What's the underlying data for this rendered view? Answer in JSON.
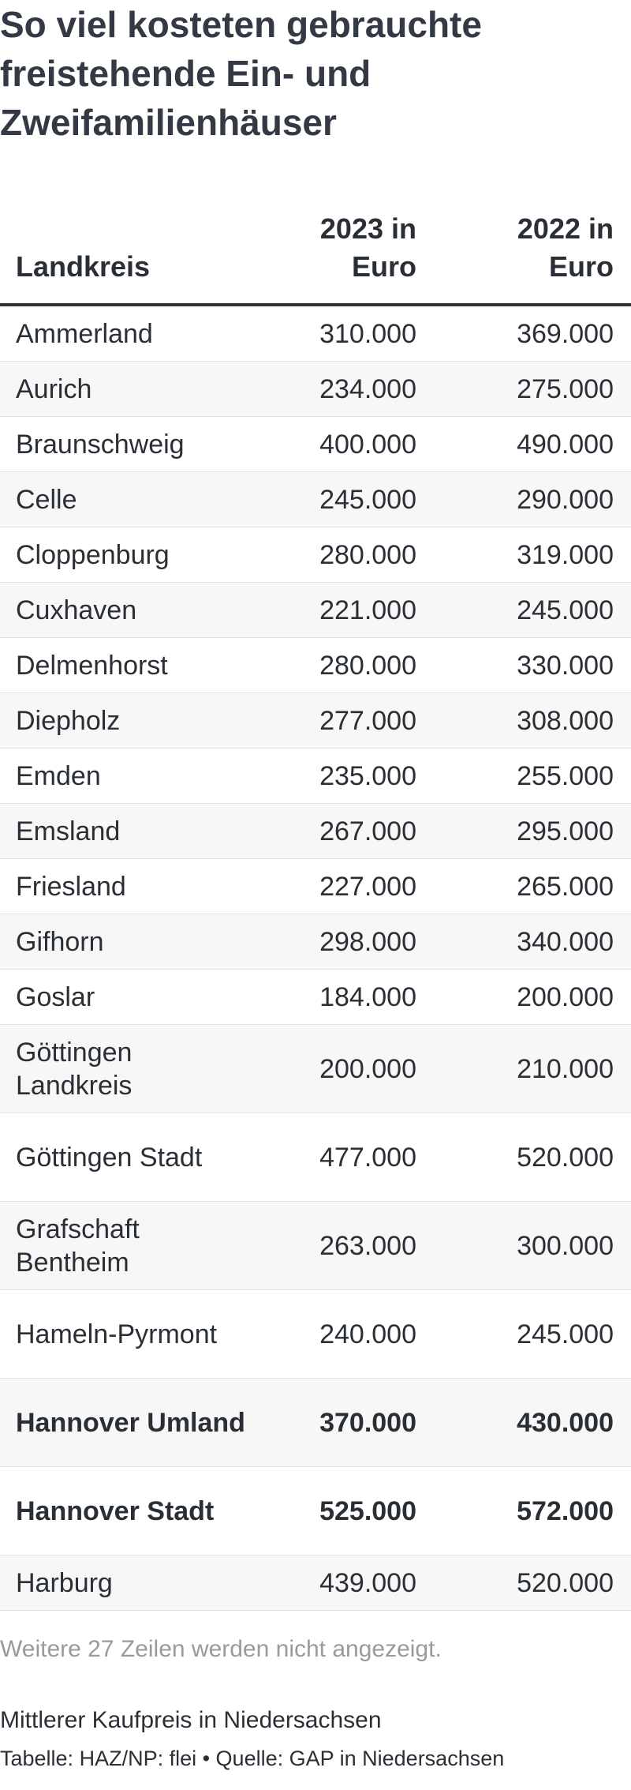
{
  "title": "So viel kosteten gebrauchte freistehende Ein- und Zweifamilienhäuser",
  "table": {
    "headers": [
      "Landkreis",
      "2023 in Euro",
      "2022 in Euro"
    ],
    "rows": [
      {
        "name": "Ammerland",
        "v2023": "310.000",
        "v2022": "369.000"
      },
      {
        "name": "Aurich",
        "v2023": "234.000",
        "v2022": "275.000"
      },
      {
        "name": "Braunschweig",
        "v2023": "400.000",
        "v2022": "490.000"
      },
      {
        "name": "Celle",
        "v2023": "245.000",
        "v2022": "290.000"
      },
      {
        "name": "Cloppenburg",
        "v2023": "280.000",
        "v2022": "319.000"
      },
      {
        "name": "Cuxhaven",
        "v2023": "221.000",
        "v2022": "245.000"
      },
      {
        "name": "Delmenhorst",
        "v2023": "280.000",
        "v2022": "330.000"
      },
      {
        "name": "Diepholz",
        "v2023": "277.000",
        "v2022": "308.000"
      },
      {
        "name": "Emden",
        "v2023": "235.000",
        "v2022": "255.000"
      },
      {
        "name": "Emsland",
        "v2023": "267.000",
        "v2022": "295.000"
      },
      {
        "name": "Friesland",
        "v2023": "227.000",
        "v2022": "265.000"
      },
      {
        "name": "Gifhorn",
        "v2023": "298.000",
        "v2022": "340.000"
      },
      {
        "name": "Goslar",
        "v2023": "184.000",
        "v2022": "200.000"
      },
      {
        "name": "Göttingen Landkreis",
        "v2023": "200.000",
        "v2022": "210.000"
      },
      {
        "name": "Göttingen Stadt",
        "v2023": "477.000",
        "v2022": "520.000"
      },
      {
        "name": "Grafschaft Bentheim",
        "v2023": "263.000",
        "v2022": "300.000"
      },
      {
        "name": "Hameln-Pyrmont",
        "v2023": "240.000",
        "v2022": "245.000"
      },
      {
        "name": "Hannover Umland",
        "v2023": "370.000",
        "v2022": "430.000"
      },
      {
        "name": "Hannover Stadt",
        "v2023": "525.000",
        "v2022": "572.000"
      },
      {
        "name": "Harburg",
        "v2023": "439.000",
        "v2022": "520.000"
      }
    ]
  },
  "more_rows_text": "Weitere 27 Zeilen werden nicht angezeigt.",
  "note": "Mittlerer Kaufpreis in Niedersachsen",
  "source": "Tabelle: HAZ/NP: flei • Quelle: GAP in Niedersachsen"
}
